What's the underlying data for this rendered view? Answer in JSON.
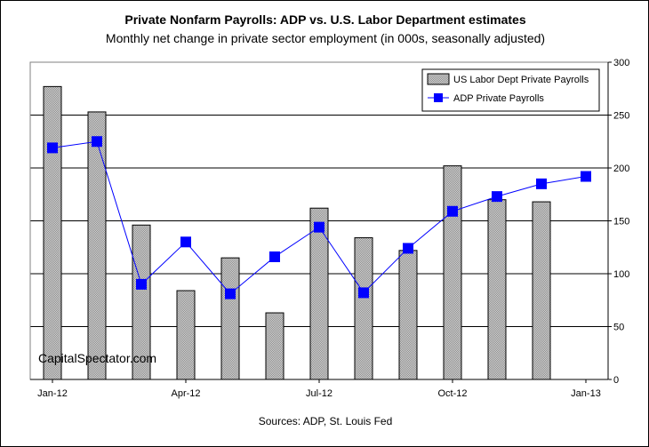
{
  "watermark": "CapitalSpectator.com",
  "source": "Sources: ADP, St. Louis Fed",
  "chart_data": {
    "type": "bar",
    "title": "Private Nonfarm Payrolls: ADP vs. U.S. Labor Department estimates",
    "subtitle": "Monthly net change in private sector employment (in 000s, seasonally adjusted)",
    "categories": [
      "Jan-12",
      "Feb-12",
      "Mar-12",
      "Apr-12",
      "May-12",
      "Jun-12",
      "Jul-12",
      "Aug-12",
      "Sep-12",
      "Oct-12",
      "Nov-12",
      "Dec-12",
      "Jan-13"
    ],
    "x_tick_labels": [
      "Jan-12",
      "Apr-12",
      "Jul-12",
      "Oct-12",
      "Jan-13"
    ],
    "ylim": [
      0,
      300
    ],
    "y_ticks": [
      0,
      50,
      100,
      150,
      200,
      250,
      300
    ],
    "y_axis_side": "right",
    "grid": true,
    "legend_placement": "top-right",
    "series": [
      {
        "name": "US Labor Dept Private Payrolls",
        "type": "bar",
        "color": "#c0c0c0",
        "values": [
          277,
          253,
          146,
          84,
          115,
          63,
          162,
          134,
          122,
          202,
          170,
          168,
          null
        ]
      },
      {
        "name": "ADP Private Payrolls",
        "type": "line",
        "color": "#0000ff",
        "values": [
          219,
          225,
          90,
          130,
          81,
          116,
          144,
          82,
          124,
          159,
          173,
          185,
          192
        ]
      }
    ]
  }
}
